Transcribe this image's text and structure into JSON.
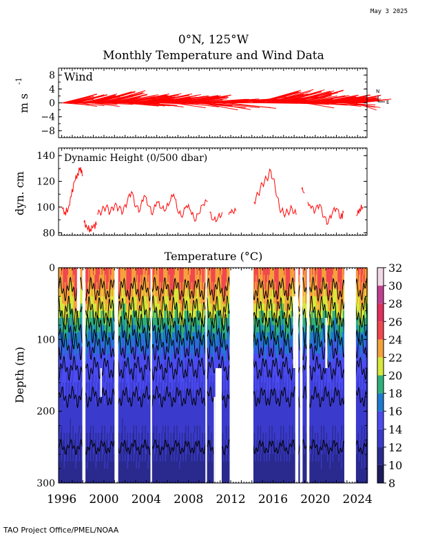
{
  "date_stamp": "May  3 2025",
  "footer": "TAO Project Office/PMEL/NOAA",
  "title_line1": "0°N, 125°W",
  "title_line2": "Monthly Temperature and Wind Data",
  "chart_data": [
    {
      "type": "vector",
      "label": "Wind",
      "ylabel": "m s",
      "ylabel_superscript": "-1",
      "ylim": [
        -10,
        10
      ],
      "yticks": [
        8,
        4,
        0,
        -4,
        -8
      ],
      "compass": {
        "north": "N",
        "east": "E"
      },
      "color": "#ff0000",
      "segments": [
        {
          "start": 1996.0,
          "end": 1998.6,
          "u": -3.5,
          "v": 1.8
        },
        {
          "start": 1998.6,
          "end": 2001.0,
          "u": -4.5,
          "v": 2.5
        },
        {
          "start": 2001.0,
          "end": 2004.5,
          "u": -5.0,
          "v": 1.8
        },
        {
          "start": 2004.5,
          "end": 2008.5,
          "u": -5.0,
          "v": 1.6
        },
        {
          "start": 2008.5,
          "end": 2012.0,
          "u": -6.0,
          "v": 0.8
        },
        {
          "start": 2014.0,
          "end": 2018.5,
          "u": -5.0,
          "v": 2.6
        },
        {
          "start": 2018.5,
          "end": 2023.0,
          "u": -4.5,
          "v": 1.6
        },
        {
          "start": 2023.0,
          "end": 2024.3,
          "u": -3.5,
          "v": 0.8
        }
      ]
    },
    {
      "type": "line",
      "label": "Dynamic Height (0/500 dbar)",
      "ylabel": "dyn. cm",
      "ylim": [
        78,
        146
      ],
      "yticks": [
        140,
        120,
        100,
        80
      ],
      "color": "#ff0000",
      "series": [
        {
          "x": [
            1996.0,
            1996.3,
            1996.6,
            1996.9,
            1997.2,
            1997.5,
            1997.8,
            1997.95
          ],
          "y": [
            100,
            96,
            98,
            108,
            120,
            126,
            131,
            124
          ]
        },
        {
          "x": [
            1998.1,
            1998.4,
            1998.7,
            1999.0,
            1999.3
          ],
          "y": [
            88,
            84,
            83,
            85,
            86
          ]
        },
        {
          "x": [
            1999.4,
            1999.8,
            2000.2,
            2000.6,
            2001.0,
            2001.4,
            2001.8,
            2002.2,
            2002.6,
            2003.0,
            2003.4,
            2003.8,
            2004.2,
            2004.6,
            2005.0,
            2005.4,
            2005.8,
            2006.2,
            2006.6,
            2007.0,
            2007.4,
            2007.8,
            2008.2,
            2008.6,
            2009.0,
            2009.4,
            2009.8
          ],
          "y": [
            94,
            97,
            100,
            96,
            101,
            99,
            96,
            104,
            112,
            100,
            97,
            109,
            101,
            94,
            104,
            99,
            97,
            103,
            110,
            96,
            92,
            101,
            97,
            89,
            95,
            102,
            104
          ]
        },
        {
          "x": [
            2010.0,
            2010.4,
            2010.8,
            2011.2
          ],
          "y": [
            96,
            90,
            92,
            96
          ]
        },
        {
          "x": [
            2011.8,
            2012.1,
            2012.5
          ],
          "y": [
            94,
            98,
            97
          ]
        },
        {
          "x": [
            2014.2,
            2014.6,
            2015.0,
            2015.4,
            2015.8,
            2016.2,
            2016.6,
            2017.0,
            2017.4,
            2017.8,
            2018.2
          ],
          "y": [
            104,
            110,
            118,
            122,
            128,
            116,
            100,
            95,
            96,
            99,
            94
          ]
        },
        {
          "x": [
            2018.7,
            2019.0
          ],
          "y": [
            114,
            111
          ]
        },
        {
          "x": [
            2019.3,
            2019.6,
            2020.0,
            2020.4,
            2020.8,
            2021.2,
            2021.6,
            2022.0,
            2022.4,
            2022.7
          ],
          "y": [
            104,
            99,
            97,
            102,
            92,
            87,
            95,
            99,
            91,
            96
          ]
        },
        {
          "x": [
            2023.9,
            2024.2,
            2024.5
          ],
          "y": [
            93,
            99,
            100
          ]
        }
      ]
    },
    {
      "type": "heatmap",
      "title": "Temperature (°C)",
      "ylabel": "Depth (m)",
      "ylim": [
        300,
        0
      ],
      "yticks": [
        0,
        100,
        200,
        300
      ],
      "xlim": [
        1995.7,
        2024.9
      ],
      "xticks": [
        "1996",
        "2000",
        "2004",
        "2008",
        "2012",
        "2016",
        "2020",
        "2024"
      ],
      "xtick_values": [
        1996,
        2000,
        2004,
        2008,
        2012,
        2016,
        2020,
        2024
      ],
      "colorbar": {
        "min": 8,
        "max": 32,
        "tick_labels": [
          "32",
          "30",
          "28",
          "26",
          "24",
          "22",
          "20",
          "18",
          "16",
          "14",
          "12",
          "10",
          "8"
        ],
        "tick_values": [
          32,
          30,
          28,
          26,
          24,
          22,
          20,
          18,
          16,
          14,
          12,
          10,
          8
        ],
        "colors": [
          {
            "from": 8,
            "to": 10,
            "color": "#1c1c5c"
          },
          {
            "from": 10,
            "to": 12,
            "color": "#2a2a8e"
          },
          {
            "from": 12,
            "to": 14,
            "color": "#3a3acc"
          },
          {
            "from": 14,
            "to": 16,
            "color": "#4b4bf0"
          },
          {
            "from": 16,
            "to": 18,
            "color": "#1f7ad0"
          },
          {
            "from": 18,
            "to": 20,
            "color": "#2fb07a"
          },
          {
            "from": 20,
            "to": 22,
            "color": "#d8e83a"
          },
          {
            "from": 22,
            "to": 24,
            "color": "#f4a23c"
          },
          {
            "from": 24,
            "to": 26,
            "color": "#f0484e"
          },
          {
            "from": 26,
            "to": 28,
            "color": "#e0305c"
          },
          {
            "from": 28,
            "to": 30,
            "color": "#c04090"
          },
          {
            "from": 30,
            "to": 32,
            "color": "#f2d8e6"
          }
        ]
      },
      "profile_depths": [
        0,
        20,
        40,
        60,
        80,
        100,
        120,
        140,
        160,
        200,
        300
      ],
      "profile_temps_warm": [
        25.5,
        25,
        24.2,
        22.5,
        20,
        17.8,
        16.2,
        15.2,
        14.5,
        13.2,
        11
      ],
      "profile_temps_cool": [
        23,
        22.5,
        21,
        19.5,
        17.5,
        16,
        15,
        14.2,
        13.8,
        12.8,
        10.8
      ],
      "data_gaps": [
        {
          "start": 1997.45,
          "end": 1997.75,
          "top": 0,
          "bottom": 60
        },
        {
          "start": 1997.95,
          "end": 1998.25,
          "top": 0,
          "bottom": 300
        },
        {
          "start": 1999.65,
          "end": 1999.8,
          "top": 140,
          "bottom": 180
        },
        {
          "start": 2001.0,
          "end": 2001.35,
          "top": 0,
          "bottom": 300
        },
        {
          "start": 2004.4,
          "end": 2004.55,
          "top": 0,
          "bottom": 300
        },
        {
          "start": 2009.6,
          "end": 2009.75,
          "top": 0,
          "bottom": 300
        },
        {
          "start": 2010.4,
          "end": 2010.55,
          "top": 180,
          "bottom": 300
        },
        {
          "start": 2010.55,
          "end": 2011.15,
          "top": 140,
          "bottom": 300
        },
        {
          "start": 2011.9,
          "end": 2014.15,
          "top": 0,
          "bottom": 300
        },
        {
          "start": 2017.9,
          "end": 2018.1,
          "top": 40,
          "bottom": 140
        },
        {
          "start": 2018.1,
          "end": 2018.4,
          "top": 0,
          "bottom": 300
        },
        {
          "start": 2018.55,
          "end": 2018.8,
          "top": 0,
          "bottom": 300
        },
        {
          "start": 2019.2,
          "end": 2019.45,
          "top": 0,
          "bottom": 300
        },
        {
          "start": 2020.95,
          "end": 2021.15,
          "top": 70,
          "bottom": 140
        },
        {
          "start": 2022.75,
          "end": 2023.85,
          "top": 0,
          "bottom": 300
        }
      ]
    }
  ]
}
